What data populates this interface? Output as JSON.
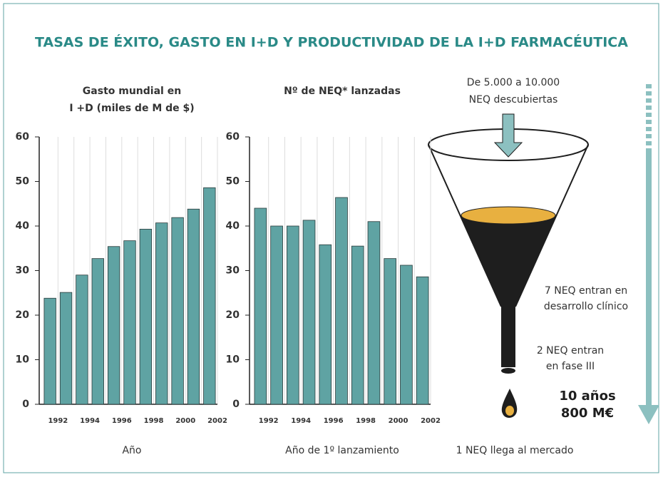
{
  "title": "TASAS DE  ÉXITO, GASTO EN I+D Y PRODUCTIVIDAD DE LA I+D FARMACÉUTICA",
  "chart_data": [
    {
      "type": "bar",
      "title_lines": [
        "Gasto mundial en",
        "I +D (miles de M de $)"
      ],
      "x_label": "Año",
      "categories": [
        "1992",
        null,
        "1994",
        null,
        "1996",
        null,
        "1998",
        null,
        "2000",
        null,
        "2002"
      ],
      "values": [
        23.8,
        25.1,
        29,
        32.7,
        35.4,
        36.7,
        39.3,
        40.7,
        41.9,
        43.8,
        48.6
      ],
      "color": "#5fa3a3",
      "ylim": [
        0,
        60
      ],
      "yticks": [
        0,
        10,
        20,
        30,
        40,
        50,
        60
      ]
    },
    {
      "type": "bar",
      "title_lines": [
        "Nº de NEQ* lanzadas"
      ],
      "x_label": "Año de 1º lanzamiento",
      "categories": [
        "1992",
        null,
        "1994",
        null,
        "1996",
        null,
        "1998",
        null,
        "2000",
        null,
        "2002"
      ],
      "values": [
        44,
        40,
        40,
        41.3,
        35.8,
        46.4,
        35.5,
        41,
        32.7,
        31.2,
        28.6
      ],
      "color": "#5fa3a3",
      "ylim": [
        0,
        60
      ],
      "yticks": [
        0,
        10,
        20,
        30,
        40,
        50,
        60
      ]
    }
  ],
  "funnel": {
    "top": [
      "De 5.000 a 10.000",
      "NEQ descubiertas"
    ],
    "clinical": [
      "7 NEQ  entran en",
      "desarrollo clínico"
    ],
    "phase3": [
      "2 NEQ  entran",
      "en fase III"
    ],
    "summary": [
      "10 años",
      "800 M€"
    ],
    "market": "1 NEQ llega al mercado"
  }
}
